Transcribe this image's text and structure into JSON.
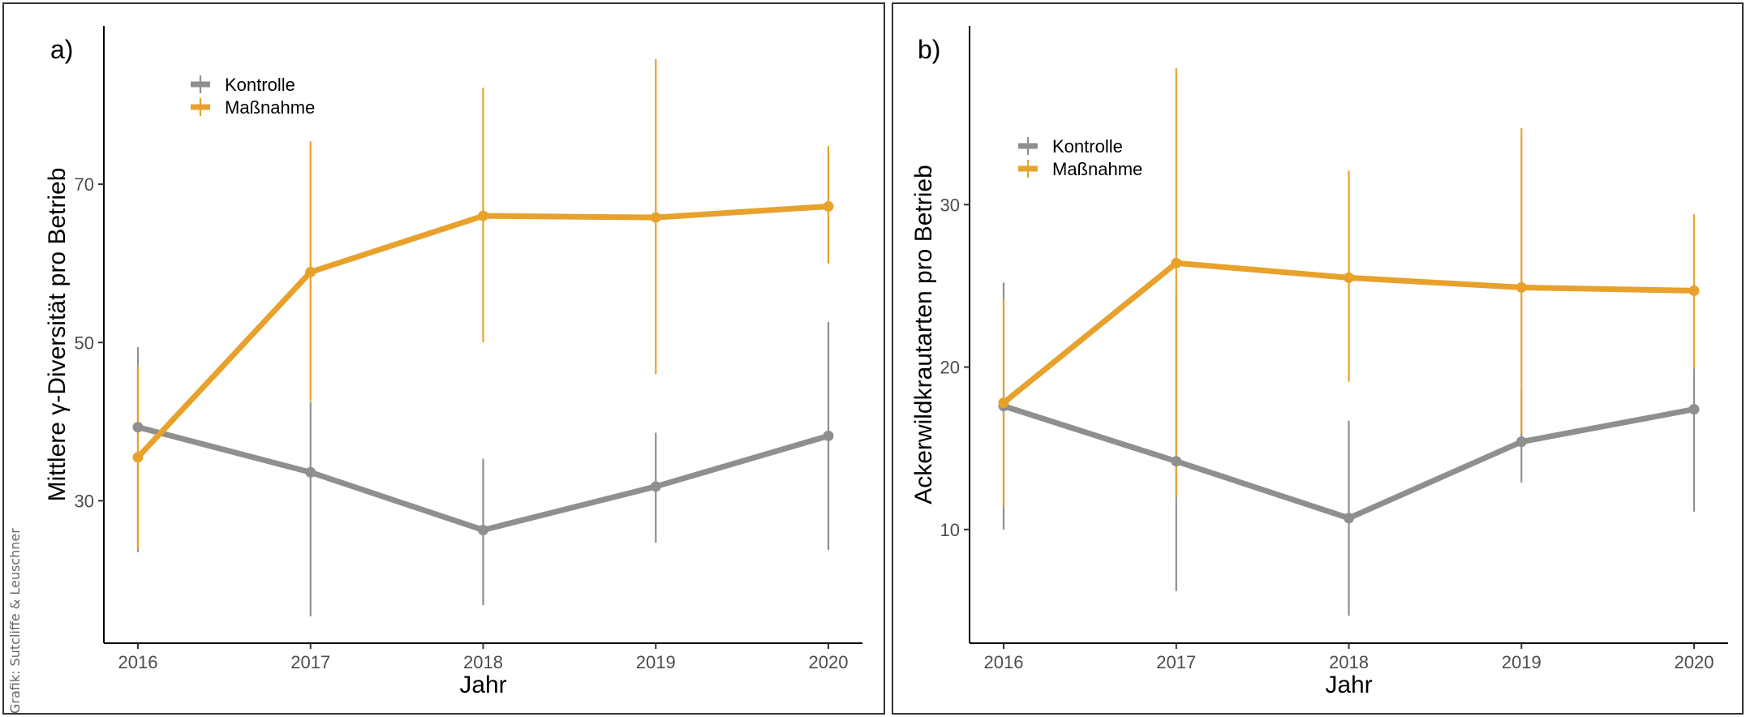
{
  "credit": "Grafik: Sutcliffe & Leuschner",
  "colors": {
    "kontrolle": "#8f8f8f",
    "massnahme": "#e8a12b"
  },
  "chart_data": [
    {
      "type": "line",
      "panel_label": "a)",
      "xlabel": "Jahr",
      "ylabel": "Mittlere γ-Diversität pro Betrieb",
      "x": [
        2016,
        2017,
        2018,
        2019,
        2020
      ],
      "yticks": [
        30,
        50,
        70
      ],
      "ylim": [
        12,
        90
      ],
      "legend_position": "top-left",
      "grid": false,
      "series": [
        {
          "name": "Kontrolle",
          "color_key": "kontrolle",
          "values": [
            39.3,
            33.6,
            26.3,
            31.8,
            38.2
          ],
          "lower": [
            23.5,
            15.4,
            16.8,
            24.7,
            23.8
          ],
          "upper": [
            49.4,
            42.5,
            35.3,
            38.6,
            52.6
          ]
        },
        {
          "name": "Maßnahme",
          "color_key": "massnahme",
          "values": [
            35.5,
            58.9,
            66.0,
            65.8,
            67.2
          ],
          "lower": [
            23.9,
            42.6,
            50.0,
            46.0,
            60.0
          ],
          "upper": [
            47.0,
            75.4,
            82.2,
            85.8,
            74.8
          ]
        }
      ]
    },
    {
      "type": "line",
      "panel_label": "b)",
      "xlabel": "Jahr",
      "ylabel": "Ackerwildkrautarten pro Betrieb",
      "x": [
        2016,
        2017,
        2018,
        2019,
        2020
      ],
      "yticks": [
        10,
        20,
        30
      ],
      "ylim": [
        3,
        41
      ],
      "legend_position": "top-left",
      "grid": false,
      "series": [
        {
          "name": "Kontrolle",
          "color_key": "kontrolle",
          "values": [
            17.6,
            14.2,
            10.7,
            15.4,
            17.4
          ],
          "lower": [
            10.0,
            6.2,
            4.7,
            12.9,
            11.1
          ],
          "upper": [
            25.2,
            24.5,
            16.7,
            18.6,
            20.0
          ]
        },
        {
          "name": "Maßnahme",
          "color_key": "massnahme",
          "values": [
            17.8,
            26.4,
            25.5,
            24.9,
            24.7
          ],
          "lower": [
            11.4,
            12.0,
            19.1,
            15.9,
            19.9
          ],
          "upper": [
            24.2,
            38.4,
            32.1,
            34.7,
            29.4
          ]
        }
      ]
    }
  ]
}
